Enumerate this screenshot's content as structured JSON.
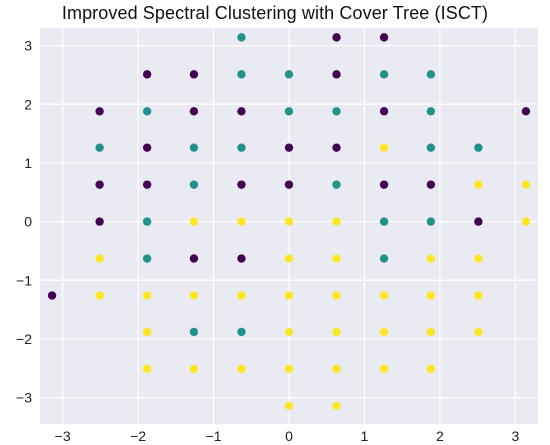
{
  "chart_data": {
    "type": "scatter",
    "title": "Improved Spectral Clustering with Cover Tree (ISCT)",
    "xlabel": "",
    "ylabel": "",
    "xlim": [
      -3.3,
      3.3
    ],
    "ylim": [
      -3.45,
      3.3
    ],
    "grid": true,
    "background": "#eaeaf2",
    "x_ticks": [
      -3,
      -2,
      -1,
      0,
      1,
      2,
      3
    ],
    "y_ticks": [
      -3,
      -2,
      -1,
      0,
      1,
      2,
      3
    ],
    "x_tick_labels": [
      "−3",
      "−2",
      "−1",
      "0",
      "1",
      "2",
      "3"
    ],
    "y_tick_labels": [
      "−3",
      "−2",
      "−1",
      "0",
      "1",
      "2",
      "3"
    ],
    "cluster_colors": {
      "purple": "#440154",
      "teal": "#21918c",
      "yellow": "#fde725"
    },
    "points": [
      {
        "x": -0.63,
        "y": 3.14,
        "c": "teal"
      },
      {
        "x": 0.63,
        "y": 3.14,
        "c": "purple"
      },
      {
        "x": 1.26,
        "y": 3.14,
        "c": "purple"
      },
      {
        "x": -1.88,
        "y": 2.51,
        "c": "purple"
      },
      {
        "x": -1.26,
        "y": 2.51,
        "c": "purple"
      },
      {
        "x": -0.63,
        "y": 2.51,
        "c": "teal"
      },
      {
        "x": 0.0,
        "y": 2.51,
        "c": "teal"
      },
      {
        "x": 0.63,
        "y": 2.51,
        "c": "purple"
      },
      {
        "x": 1.26,
        "y": 2.51,
        "c": "teal"
      },
      {
        "x": 1.88,
        "y": 2.51,
        "c": "teal"
      },
      {
        "x": -2.51,
        "y": 1.88,
        "c": "purple"
      },
      {
        "x": -1.88,
        "y": 1.88,
        "c": "teal"
      },
      {
        "x": -1.26,
        "y": 1.88,
        "c": "purple"
      },
      {
        "x": -0.63,
        "y": 1.88,
        "c": "purple"
      },
      {
        "x": 0.0,
        "y": 1.88,
        "c": "teal"
      },
      {
        "x": 0.63,
        "y": 1.88,
        "c": "teal"
      },
      {
        "x": 1.26,
        "y": 1.88,
        "c": "purple"
      },
      {
        "x": 1.88,
        "y": 1.88,
        "c": "teal"
      },
      {
        "x": 3.14,
        "y": 1.88,
        "c": "purple"
      },
      {
        "x": -2.51,
        "y": 1.26,
        "c": "teal"
      },
      {
        "x": -1.88,
        "y": 1.26,
        "c": "purple"
      },
      {
        "x": -1.26,
        "y": 1.26,
        "c": "teal"
      },
      {
        "x": -0.63,
        "y": 1.26,
        "c": "teal"
      },
      {
        "x": 0.0,
        "y": 1.26,
        "c": "purple"
      },
      {
        "x": 0.63,
        "y": 1.26,
        "c": "purple"
      },
      {
        "x": 1.26,
        "y": 1.26,
        "c": "yellow"
      },
      {
        "x": 1.88,
        "y": 1.26,
        "c": "teal"
      },
      {
        "x": 2.51,
        "y": 1.26,
        "c": "teal"
      },
      {
        "x": -2.51,
        "y": 0.63,
        "c": "purple"
      },
      {
        "x": -1.88,
        "y": 0.63,
        "c": "purple"
      },
      {
        "x": -1.26,
        "y": 0.63,
        "c": "teal"
      },
      {
        "x": -0.63,
        "y": 0.63,
        "c": "purple"
      },
      {
        "x": 0.0,
        "y": 0.63,
        "c": "purple"
      },
      {
        "x": 0.63,
        "y": 0.63,
        "c": "teal"
      },
      {
        "x": 1.26,
        "y": 0.63,
        "c": "purple"
      },
      {
        "x": 1.88,
        "y": 0.63,
        "c": "purple"
      },
      {
        "x": 2.51,
        "y": 0.63,
        "c": "yellow"
      },
      {
        "x": 3.14,
        "y": 0.63,
        "c": "yellow"
      },
      {
        "x": -2.51,
        "y": 0.0,
        "c": "purple"
      },
      {
        "x": -1.88,
        "y": 0.0,
        "c": "teal"
      },
      {
        "x": -1.26,
        "y": 0.0,
        "c": "yellow"
      },
      {
        "x": -0.63,
        "y": 0.0,
        "c": "yellow"
      },
      {
        "x": 0.0,
        "y": 0.0,
        "c": "yellow"
      },
      {
        "x": 0.63,
        "y": 0.0,
        "c": "yellow"
      },
      {
        "x": 1.26,
        "y": 0.0,
        "c": "teal"
      },
      {
        "x": 1.88,
        "y": 0.0,
        "c": "teal"
      },
      {
        "x": 2.51,
        "y": 0.0,
        "c": "purple"
      },
      {
        "x": 3.14,
        "y": 0.0,
        "c": "yellow"
      },
      {
        "x": -2.51,
        "y": -0.63,
        "c": "yellow"
      },
      {
        "x": -1.88,
        "y": -0.63,
        "c": "teal"
      },
      {
        "x": -1.26,
        "y": -0.63,
        "c": "purple"
      },
      {
        "x": -0.63,
        "y": -0.63,
        "c": "purple"
      },
      {
        "x": 0.0,
        "y": -0.63,
        "c": "yellow"
      },
      {
        "x": 0.63,
        "y": -0.63,
        "c": "yellow"
      },
      {
        "x": 1.26,
        "y": -0.63,
        "c": "teal"
      },
      {
        "x": 1.88,
        "y": -0.63,
        "c": "yellow"
      },
      {
        "x": 2.51,
        "y": -0.63,
        "c": "yellow"
      },
      {
        "x": -3.14,
        "y": -1.26,
        "c": "purple"
      },
      {
        "x": -2.51,
        "y": -1.26,
        "c": "yellow"
      },
      {
        "x": -1.88,
        "y": -1.26,
        "c": "yellow"
      },
      {
        "x": -1.26,
        "y": -1.26,
        "c": "yellow"
      },
      {
        "x": -0.63,
        "y": -1.26,
        "c": "yellow"
      },
      {
        "x": 0.0,
        "y": -1.26,
        "c": "yellow"
      },
      {
        "x": 0.63,
        "y": -1.26,
        "c": "yellow"
      },
      {
        "x": 1.26,
        "y": -1.26,
        "c": "yellow"
      },
      {
        "x": 1.88,
        "y": -1.26,
        "c": "yellow"
      },
      {
        "x": 2.51,
        "y": -1.26,
        "c": "yellow"
      },
      {
        "x": -1.88,
        "y": -1.88,
        "c": "yellow"
      },
      {
        "x": -1.26,
        "y": -1.88,
        "c": "teal"
      },
      {
        "x": -0.63,
        "y": -1.88,
        "c": "teal"
      },
      {
        "x": 0.0,
        "y": -1.88,
        "c": "yellow"
      },
      {
        "x": 0.63,
        "y": -1.88,
        "c": "yellow"
      },
      {
        "x": 1.26,
        "y": -1.88,
        "c": "yellow"
      },
      {
        "x": 1.88,
        "y": -1.88,
        "c": "yellow"
      },
      {
        "x": 2.51,
        "y": -1.88,
        "c": "yellow"
      },
      {
        "x": -1.88,
        "y": -2.51,
        "c": "yellow"
      },
      {
        "x": -1.26,
        "y": -2.51,
        "c": "yellow"
      },
      {
        "x": -0.63,
        "y": -2.51,
        "c": "yellow"
      },
      {
        "x": 0.0,
        "y": -2.51,
        "c": "yellow"
      },
      {
        "x": 0.63,
        "y": -2.51,
        "c": "yellow"
      },
      {
        "x": 1.26,
        "y": -2.51,
        "c": "yellow"
      },
      {
        "x": 1.88,
        "y": -2.51,
        "c": "yellow"
      },
      {
        "x": 0.0,
        "y": -3.14,
        "c": "yellow"
      },
      {
        "x": 0.63,
        "y": -3.14,
        "c": "yellow"
      }
    ]
  }
}
